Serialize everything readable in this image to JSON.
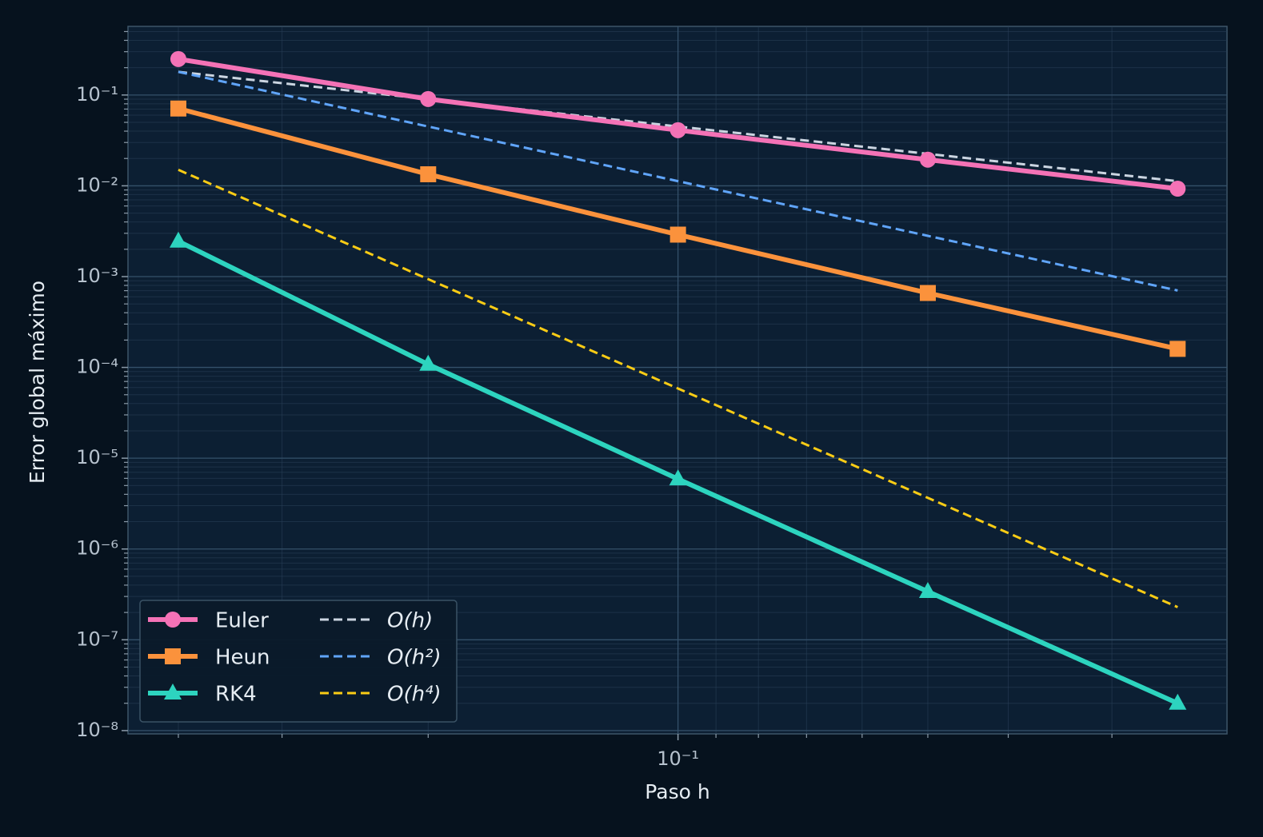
{
  "chart_data": {
    "type": "line",
    "xlabel": "Paso h",
    "ylabel": "Error global máximo",
    "x": [
      0.4,
      0.2,
      0.1,
      0.05,
      0.025
    ],
    "xscale": "log",
    "yscale": "log",
    "xlim": [
      0.46,
      0.0218
    ],
    "ylim": [
      9.2e-09,
      0.57
    ],
    "xticks": [
      {
        "value": 0.1,
        "label": "10⁻¹"
      }
    ],
    "xminorticks": [
      0.4,
      0.3,
      0.2,
      0.09,
      0.08,
      0.07,
      0.06,
      0.05,
      0.04,
      0.03
    ],
    "yticks": [
      {
        "value": 1e-08,
        "label": "10⁻⁸"
      },
      {
        "value": 1e-07,
        "label": "10⁻⁷"
      },
      {
        "value": 1e-06,
        "label": "10⁻⁶"
      },
      {
        "value": 1e-05,
        "label": "10⁻⁵"
      },
      {
        "value": 0.0001,
        "label": "10⁻⁴"
      },
      {
        "value": 0.001,
        "label": "10⁻³"
      },
      {
        "value": 0.01,
        "label": "10⁻²"
      },
      {
        "value": 0.1,
        "label": "10⁻¹"
      }
    ],
    "yminorticks": [
      2e-08,
      3e-08,
      4e-08,
      5e-08,
      6e-08,
      7e-08,
      8e-08,
      9e-08,
      2e-07,
      3e-07,
      4e-07,
      5e-07,
      6e-07,
      7e-07,
      8e-07,
      9e-07,
      2e-06,
      3e-06,
      4e-06,
      5e-06,
      6e-06,
      7e-06,
      8e-06,
      9e-06,
      2e-05,
      3e-05,
      4e-05,
      5e-05,
      6e-05,
      7e-05,
      8e-05,
      9e-05,
      0.0002,
      0.0003,
      0.0004,
      0.0005,
      0.0006,
      0.0007,
      0.0008,
      0.0009,
      0.002,
      0.003,
      0.004,
      0.005,
      0.006,
      0.007,
      0.008,
      0.009,
      0.02,
      0.03,
      0.04,
      0.05,
      0.06,
      0.07,
      0.08,
      0.09,
      0.2,
      0.3,
      0.4,
      0.5
    ],
    "grid": true,
    "legend": "lower left",
    "series": [
      {
        "name": "Euler",
        "color": "#f472b6",
        "marker": "circle",
        "linestyle": "solid",
        "values": [
          0.249,
          0.0903,
          0.041,
          0.0194,
          0.0093
        ]
      },
      {
        "name": "Heun",
        "color": "#fb923c",
        "marker": "square",
        "linestyle": "solid",
        "values": [
          0.071,
          0.0134,
          0.0029,
          0.00066,
          0.00016
        ]
      },
      {
        "name": "RK4",
        "color": "#2dd4bf",
        "marker": "triangle",
        "linestyle": "solid",
        "values": [
          0.00245,
          0.000108,
          5.9e-06,
          3.4e-07,
          2e-08
        ]
      },
      {
        "name": "O(h)",
        "color": "#cbd5e1",
        "linestyle": "dashed",
        "values": [
          0.18,
          0.09,
          0.045,
          0.0225,
          0.01125
        ]
      },
      {
        "name": "O(h²)",
        "color": "#60a5fa",
        "linestyle": "dashed",
        "values": [
          0.18,
          0.045,
          0.01125,
          0.0028125,
          0.000703
        ]
      },
      {
        "name": "O(h⁴)",
        "color": "#facc15",
        "linestyle": "dashed",
        "values": [
          0.015,
          0.0009375,
          5.86e-05,
          3.66e-06,
          2.29e-07
        ]
      }
    ]
  }
}
